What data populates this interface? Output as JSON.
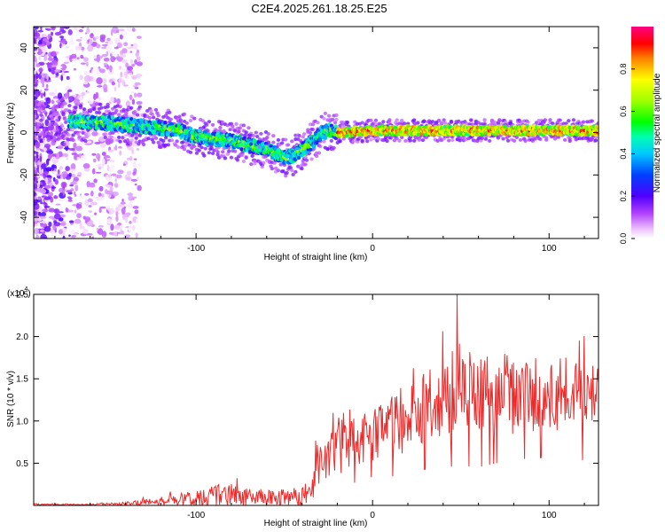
{
  "title": "C2E4.2025.261.18.25.E25",
  "colorbar": {
    "label": "Normalized spectral amplitude",
    "ticks": [
      "0.0",
      "0.2",
      "0.4",
      "0.6",
      "0.8"
    ],
    "tick_values": [
      0.0,
      0.2,
      0.4,
      0.6,
      0.8
    ],
    "range": [
      0,
      1
    ]
  },
  "chart_data": [
    {
      "type": "heatmap",
      "name": "spectrogram",
      "xlabel": "Height of straight line (km)",
      "ylabel": "Frequency (Hz)",
      "xlim": [
        -192,
        128
      ],
      "ylim": [
        -50,
        50
      ],
      "xticks": [
        -100,
        0,
        100
      ],
      "xtick_labels": [
        "-100",
        "0",
        "100"
      ],
      "yticks": [
        -40,
        -20,
        0,
        20,
        40
      ],
      "ytick_labels": [
        "-40",
        "-20",
        "0",
        "20",
        "40"
      ],
      "ridge_x": [
        -192,
        -160,
        -130,
        -110,
        -100,
        -90,
        -80,
        -70,
        -60,
        -55,
        -50,
        -45,
        -40,
        -35,
        -30,
        -25,
        -20,
        -15,
        0,
        40,
        80,
        128
      ],
      "ridge_y": [
        5,
        5,
        3,
        1,
        -2,
        -3,
        -4,
        -6,
        -8,
        -10,
        -12,
        -11,
        -8,
        -5,
        -1,
        1,
        0,
        0,
        1,
        1,
        1,
        1
      ]
    },
    {
      "type": "line",
      "name": "snr",
      "xlabel": "Height of straight line (km)",
      "ylabel": "SNR (10 * v/v)",
      "scale_label": "(x10",
      "scale_exp": "4",
      "scale_close": ")",
      "xlim": [
        -192,
        128
      ],
      "ylim": [
        0,
        2.5
      ],
      "xticks": [
        -100,
        0,
        100
      ],
      "xtick_labels": [
        "-100",
        "0",
        "100"
      ],
      "yticks": [
        0.5,
        1.0,
        1.5,
        2.0,
        2.5
      ],
      "ytick_labels": [
        "0.5",
        "1.0",
        "1.5",
        "2.0",
        "2.5"
      ],
      "series": [
        {
          "name": "SNR",
          "color": "#ee2a2a",
          "envelope_x": [
            -192,
            -160,
            -140,
            -120,
            -110,
            -100,
            -90,
            -80,
            -70,
            -60,
            -50,
            -40,
            -36,
            -34,
            -30,
            -25,
            -20,
            -15,
            -10,
            -5,
            0,
            10,
            20,
            30,
            40,
            50,
            60,
            70,
            80,
            90,
            100,
            110,
            120,
            128
          ],
          "envelope_mean": [
            0.01,
            0.01,
            0.02,
            0.05,
            0.07,
            0.1,
            0.11,
            0.13,
            0.1,
            0.09,
            0.09,
            0.1,
            0.12,
            0.3,
            0.5,
            0.6,
            0.7,
            0.72,
            0.75,
            0.8,
            0.85,
            0.95,
            1.05,
            1.15,
            1.25,
            1.35,
            1.25,
            1.3,
            1.35,
            1.35,
            1.3,
            1.3,
            1.25,
            1.3
          ],
          "envelope_noise": [
            0.01,
            0.01,
            0.02,
            0.05,
            0.07,
            0.12,
            0.14,
            0.15,
            0.1,
            0.1,
            0.1,
            0.12,
            0.15,
            0.25,
            0.3,
            0.32,
            0.35,
            0.3,
            0.3,
            0.3,
            0.32,
            0.38,
            0.42,
            0.45,
            0.5,
            0.55,
            0.5,
            0.5,
            0.5,
            0.5,
            0.45,
            0.45,
            0.45,
            0.45
          ],
          "peak_x": 48,
          "peak_y": 2.5
        }
      ]
    }
  ]
}
